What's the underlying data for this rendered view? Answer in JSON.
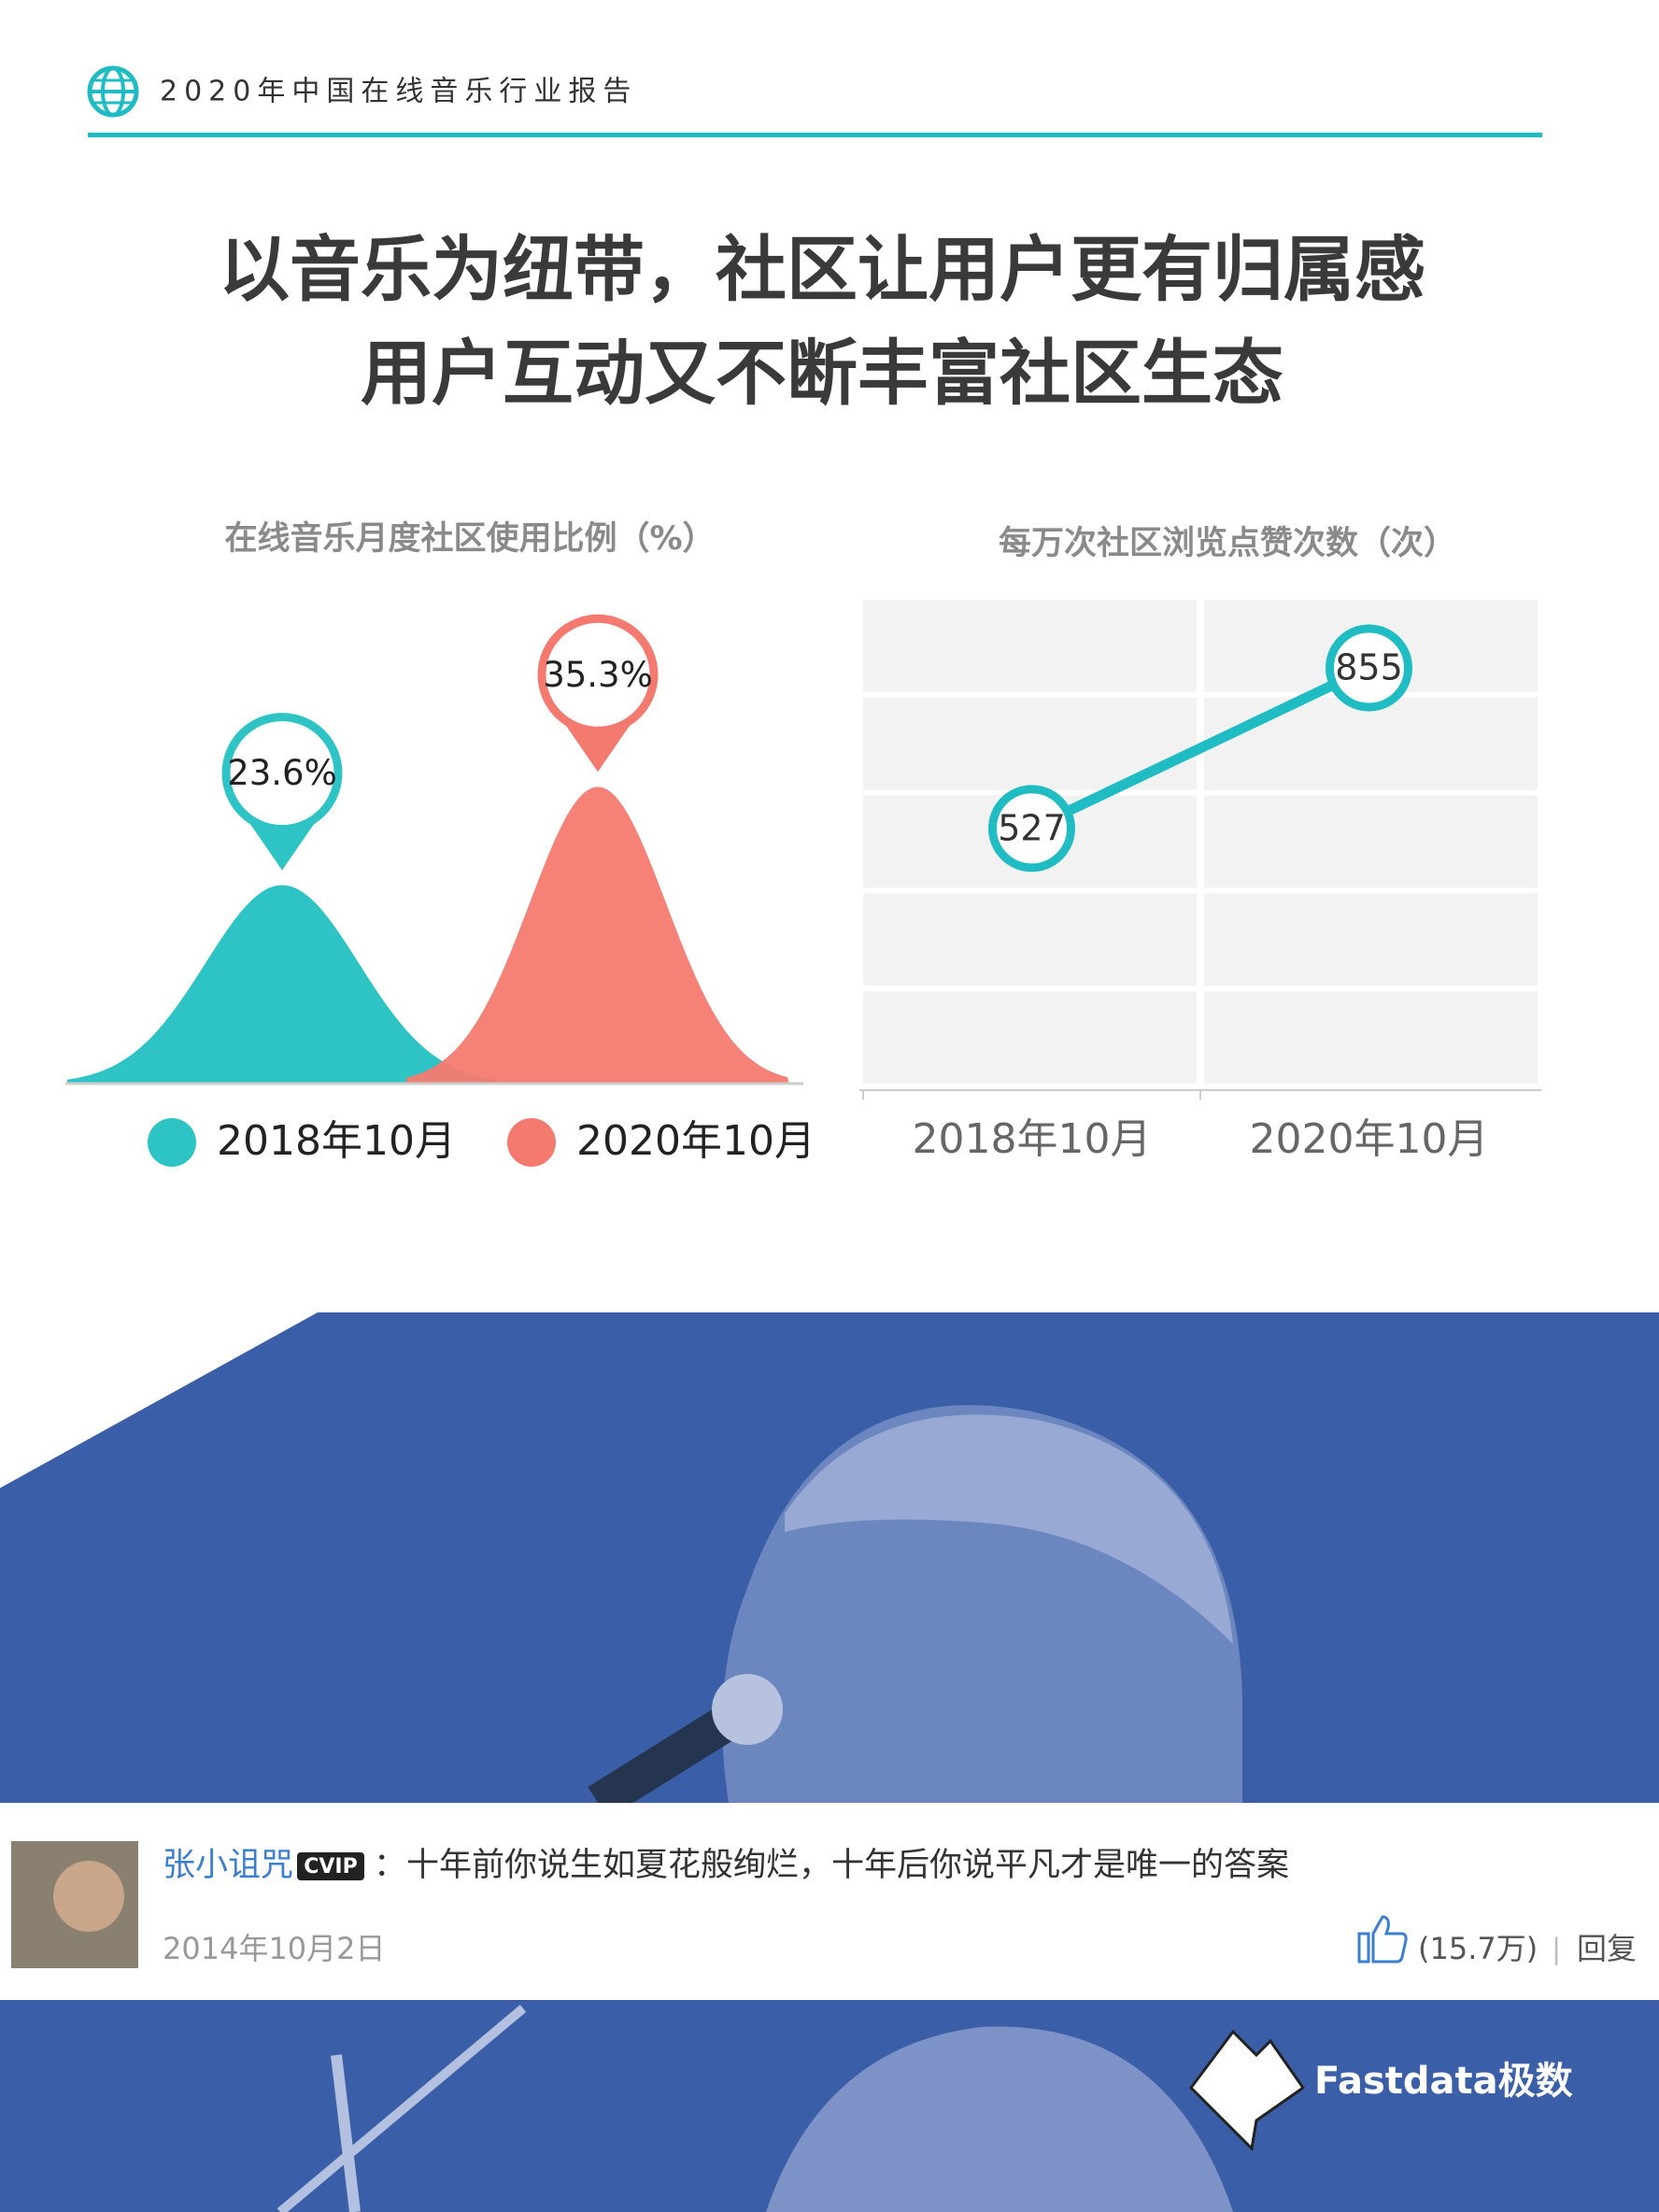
{
  "header": {
    "report": "2020年中国在线音乐行业报告"
  },
  "title": [
    "以音乐为纽带，社区让用户更有归属感",
    "用户互动又不断丰富社区生态"
  ],
  "chart_data": [
    {
      "type": "bell",
      "title": "在线音乐月度社区使用比例（%）",
      "categories": [
        "2018年10月",
        "2020年10月"
      ],
      "values": [
        23.6,
        35.3
      ],
      "value_labels": [
        "23.6%",
        "35.3%"
      ],
      "colors": [
        "#2ec4c6",
        "#f47a70"
      ]
    },
    {
      "type": "line",
      "title": "每万次社区浏览点赞次数（次）",
      "categories": [
        "2018年10月",
        "2020年10月"
      ],
      "values": [
        527,
        855
      ],
      "color": "#1fbcc4",
      "ylim": [
        0,
        1000
      ],
      "yticks": [
        0,
        200,
        400,
        600,
        800,
        1000
      ],
      "grid": true
    }
  ],
  "comment": {
    "user": "张小诅咒",
    "badge": "CVIP",
    "text": "：十年前你说生如夏花般绚烂，十年后你说平凡才是唯一的答案",
    "date": "2014年10月2日",
    "likes": "(15.7万)",
    "separator": "|",
    "reply": "回复"
  },
  "logo": "Fastdata极数"
}
